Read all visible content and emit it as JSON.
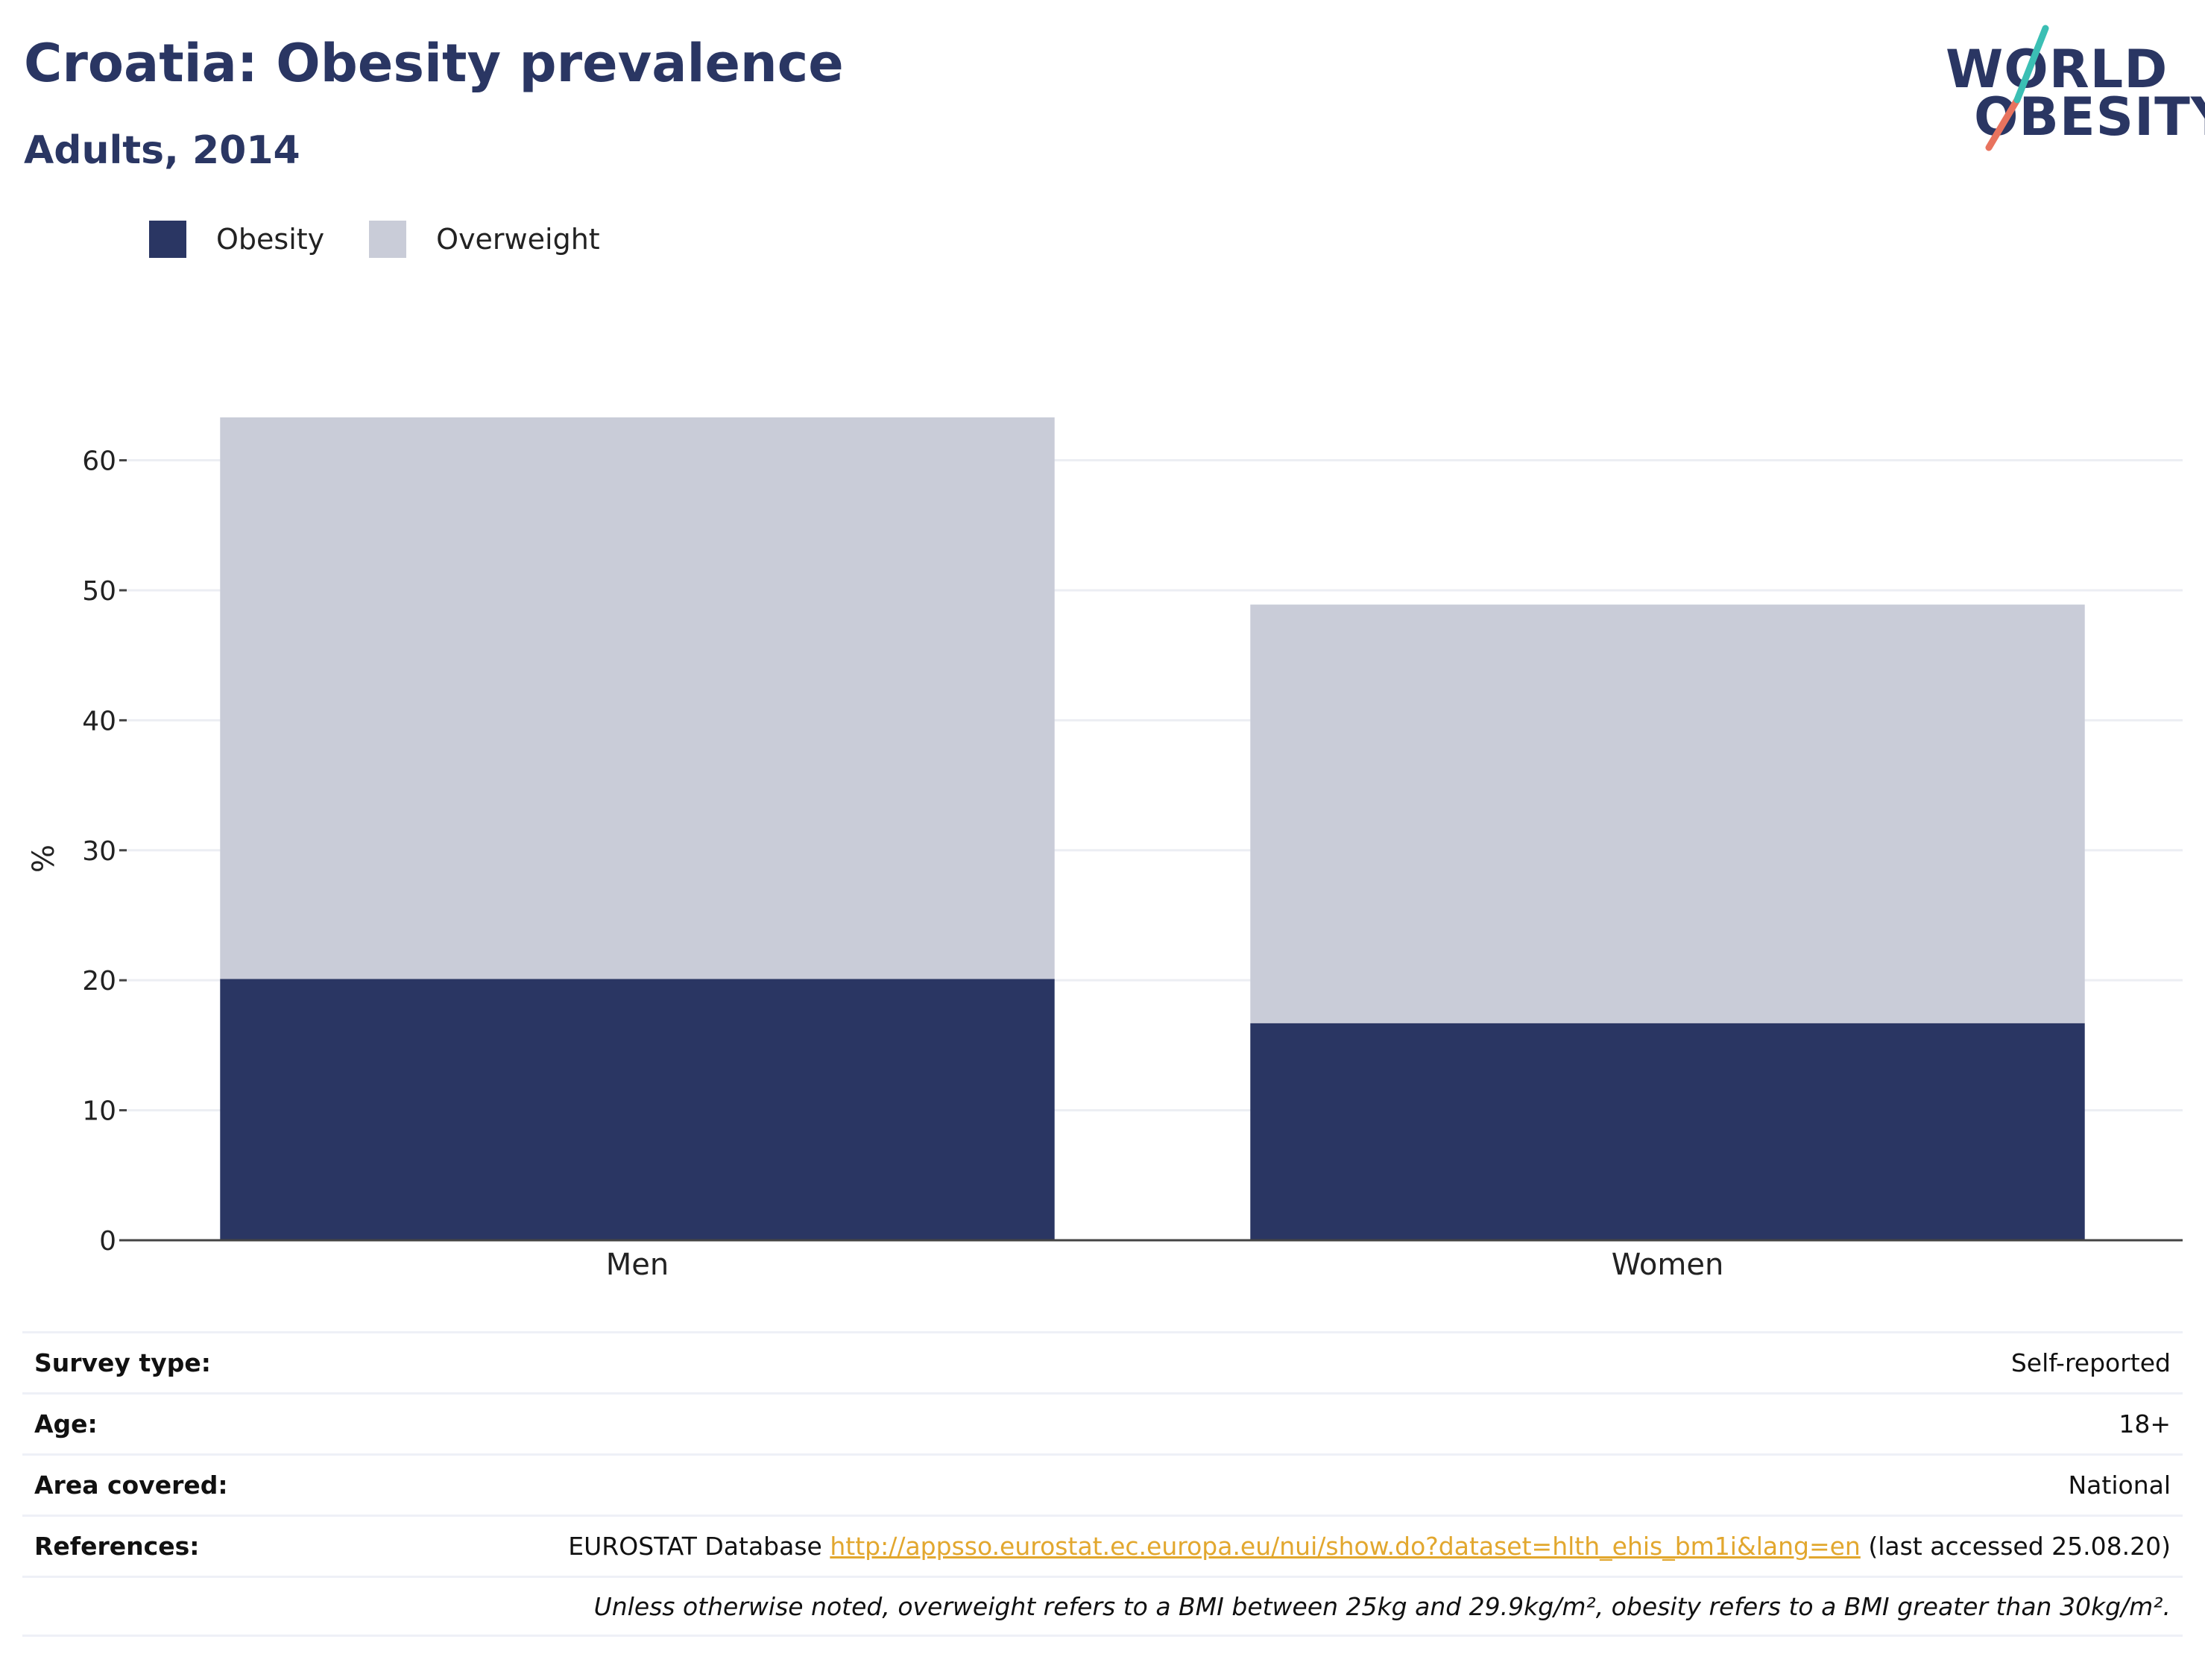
{
  "header": {
    "title": "Croatia: Obesity prevalence",
    "subtitle": "Adults, 2014"
  },
  "logo": {
    "line1": "WORLD",
    "line2": "OBESITY",
    "colors": {
      "text": "#2a3663",
      "slash_top": "#3bbfb4",
      "slash_bottom": "#e8735e"
    }
  },
  "chart_data": {
    "type": "bar",
    "stacked": true,
    "categories": [
      "Men",
      "Women"
    ],
    "series": [
      {
        "name": "Obesity",
        "values": [
          20.1,
          16.7
        ],
        "color": "#2a3663"
      },
      {
        "name": "Overweight",
        "values": [
          43.2,
          32.2
        ],
        "color": "#c9ccd8"
      }
    ],
    "ylabel": "%",
    "ylim": [
      0,
      63.3
    ],
    "yticks": [
      0,
      10,
      20,
      30,
      40,
      50,
      60
    ],
    "grid": true,
    "legend_position": "top-left"
  },
  "meta": {
    "survey_type": {
      "label": "Survey type:",
      "value": "Self-reported"
    },
    "age": {
      "label": "Age:",
      "value": "18+"
    },
    "area": {
      "label": "Area covered:",
      "value": "National"
    },
    "references": {
      "label": "References:",
      "prefix": "EUROSTAT Database",
      "link": "http://appsso.eurostat.ec.europa.eu/nui/show.do?dataset=hlth_ehis_bm1i&lang=en",
      "suffix": "(last accessed 25.08.20)"
    },
    "note": "Unless otherwise noted, overweight refers to a BMI between 25kg and 29.9kg/m², obesity refers to a BMI greater than 30kg/m²."
  }
}
